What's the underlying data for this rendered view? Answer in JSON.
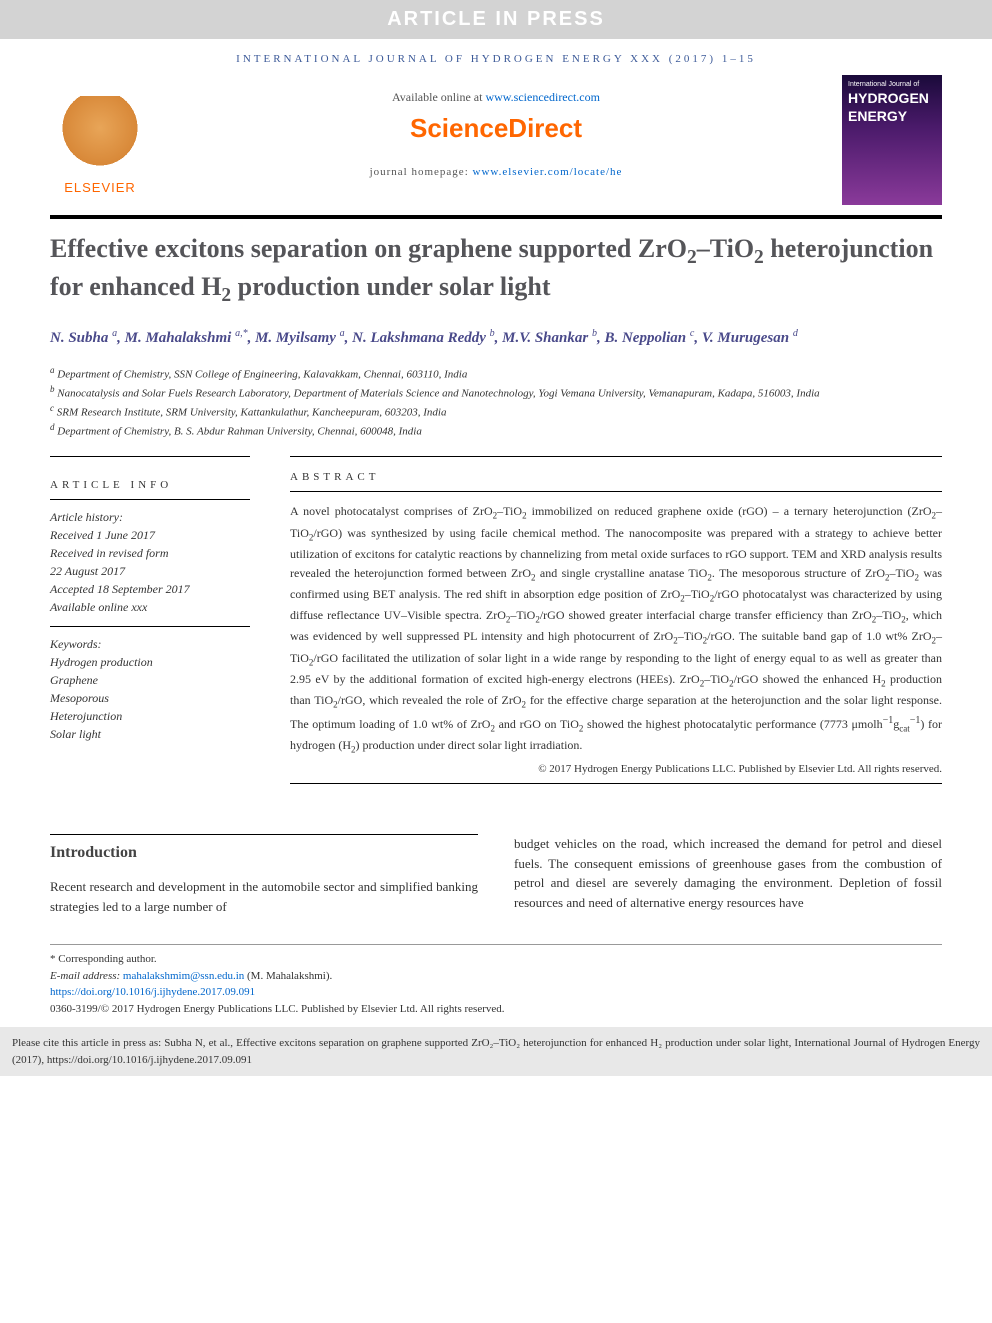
{
  "banner": "ARTICLE IN PRESS",
  "journal_line": "INTERNATIONAL JOURNAL OF HYDROGEN ENERGY XXX (2017) 1–15",
  "header": {
    "available_prefix": "Available online at ",
    "available_link": "www.sciencedirect.com",
    "scidirect": "ScienceDirect",
    "homepage_prefix": "journal homepage: ",
    "homepage_link": "www.elsevier.com/locate/he",
    "elsevier": "ELSEVIER",
    "cover_small": "International Journal of",
    "cover_big1": "HYDROGEN",
    "cover_big2": "ENERGY"
  },
  "title_html": "Effective excitons separation on graphene supported ZrO<sub>2</sub>–TiO<sub>2</sub> heterojunction for enhanced H<sub>2</sub> production under solar light",
  "authors_html": "N. Subha <span class='sup'>a</span>, M. Mahalakshmi <span class='sup'>a,*</span>, M. Myilsamy <span class='sup'>a</span>, N. Lakshmana Reddy <span class='sup'>b</span>, M.V. Shankar <span class='sup'>b</span>, B. Neppolian <span class='sup'>c</span>, V. Murugesan <span class='sup'>d</span>",
  "affiliations": [
    {
      "sup": "a",
      "text": "Department of Chemistry, SSN College of Engineering, Kalavakkam, Chennai, 603110, India"
    },
    {
      "sup": "b",
      "text": "Nanocatalysis and Solar Fuels Research Laboratory, Department of Materials Science and Nanotechnology, Yogi Vemana University, Vemanapuram, Kadapa, 516003, India"
    },
    {
      "sup": "c",
      "text": "SRM Research Institute, SRM University, Kattankulathur, Kancheepuram, 603203, India"
    },
    {
      "sup": "d",
      "text": "Department of Chemistry, B. S. Abdur Rahman University, Chennai, 600048, India"
    }
  ],
  "article_info": {
    "head": "ARTICLE INFO",
    "history_label": "Article history:",
    "lines": [
      "Received 1 June 2017",
      "Received in revised form",
      "22 August 2017",
      "Accepted 18 September 2017",
      "Available online xxx"
    ],
    "keywords_label": "Keywords:",
    "keywords": [
      "Hydrogen production",
      "Graphene",
      "Mesoporous",
      "Heterojunction",
      "Solar light"
    ]
  },
  "abstract": {
    "head": "ABSTRACT",
    "text_html": "A novel photocatalyst comprises of ZrO<sub>2</sub>–TiO<sub>2</sub> immobilized on reduced graphene oxide (rGO) – a ternary heterojunction (ZrO<sub>2</sub>–TiO<sub>2</sub>/rGO) was synthesized by using facile chemical method. The nanocomposite was prepared with a strategy to achieve better utilization of excitons for catalytic reactions by channelizing from metal oxide surfaces to rGO support. TEM and XRD analysis results revealed the heterojunction formed between ZrO<sub>2</sub> and single crystalline anatase TiO<sub>2</sub>. The mesoporous structure of ZrO<sub>2</sub>–TiO<sub>2</sub> was confirmed using BET analysis. The red shift in absorption edge position of ZrO<sub>2</sub>–TiO<sub>2</sub>/rGO photocatalyst was characterized by using diffuse reflectance UV–Visible spectra. ZrO<sub>2</sub>–TiO<sub>2</sub>/rGO showed greater interfacial charge transfer efficiency than ZrO<sub>2</sub>–TiO<sub>2</sub>, which was evidenced by well suppressed PL intensity and high photocurrent of ZrO<sub>2</sub>–TiO<sub>2</sub>/rGO. The suitable band gap of 1.0 wt% ZrO<sub>2</sub>–TiO<sub>2</sub>/rGO facilitated the utilization of solar light in a wide range by responding to the light of energy equal to as well as greater than 2.95 eV by the additional formation of excited high-energy electrons (HEEs). ZrO<sub>2</sub>–TiO<sub>2</sub>/rGO showed the enhanced H<sub>2</sub> production than TiO<sub>2</sub>/rGO, which revealed the role of ZrO<sub>2</sub> for the effective charge separation at the heterojunction and the solar light response. The optimum loading of 1.0 wt% of ZrO<sub>2</sub> and rGO on TiO<sub>2</sub> showed the highest photocatalytic performance (7773 μmolh<sup>−1</sup>g<sub>cat</sub><sup>−1</sup>) for hydrogen (H<sub>2</sub>) production under direct solar light irradiation.",
    "copyright": "© 2017 Hydrogen Energy Publications LLC. Published by Elsevier Ltd. All rights reserved."
  },
  "intro": {
    "head": "Introduction",
    "col1": "Recent research and development in the automobile sector and simplified banking strategies led to a large number of",
    "col2": "budget vehicles on the road, which increased the demand for petrol and diesel fuels. The consequent emissions of greenhouse gases from the combustion of petrol and diesel are severely damaging the environment. Depletion of fossil resources and need of alternative energy resources have"
  },
  "footnotes": {
    "corr": "* Corresponding author.",
    "email_label": "E-mail address: ",
    "email": "mahalakshmim@ssn.edu.in",
    "email_after": " (M. Mahalakshmi).",
    "doi": "https://doi.org/10.1016/j.ijhydene.2017.09.091",
    "issn_line": "0360-3199/© 2017 Hydrogen Energy Publications LLC. Published by Elsevier Ltd. All rights reserved."
  },
  "cite_box": "Please cite this article in press as: Subha N, et al., Effective excitons separation on graphene supported ZrO₂–TiO₂ heterojunction for enhanced H₂ production under solar light, International Journal of Hydrogen Energy (2017), https://doi.org/10.1016/j.ijhydene.2017.09.091",
  "colors": {
    "banner_bg": "#d3d3d3",
    "banner_text": "#ffffff",
    "journal_text": "#3b5998",
    "orange": "#ff6600",
    "link": "#0066cc",
    "title": "#555559",
    "authors": "#4a4a8a",
    "cite_bg": "#e8e8e8"
  }
}
